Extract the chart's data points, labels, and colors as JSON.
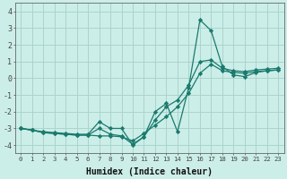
{
  "xlabel": "Humidex (Indice chaleur)",
  "x": [
    0,
    1,
    2,
    3,
    4,
    5,
    6,
    7,
    8,
    9,
    10,
    11,
    12,
    13,
    14,
    15,
    16,
    17,
    18,
    19,
    20,
    21,
    22,
    23
  ],
  "line1": [
    -3.0,
    -3.1,
    -3.25,
    -3.3,
    -3.35,
    -3.4,
    -3.4,
    -3.45,
    -3.45,
    -3.5,
    -3.75,
    -3.3,
    -2.8,
    -2.3,
    -1.7,
    -0.9,
    0.3,
    0.85,
    0.45,
    0.35,
    0.3,
    0.4,
    0.45,
    0.5
  ],
  "line2": [
    -3.0,
    -3.1,
    -3.25,
    -3.3,
    -3.35,
    -3.4,
    -3.4,
    -3.0,
    -3.35,
    -3.45,
    -3.95,
    -3.5,
    -2.5,
    -1.7,
    -1.3,
    -0.4,
    1.0,
    1.1,
    0.6,
    0.45,
    0.4,
    0.5,
    0.55,
    0.6
  ],
  "line3": [
    -3.0,
    -3.1,
    -3.2,
    -3.25,
    -3.3,
    -3.35,
    -3.35,
    -2.6,
    -3.0,
    -3.0,
    -4.0,
    -3.5,
    -2.0,
    -1.5,
    -3.2,
    -0.55,
    3.5,
    2.85,
    0.7,
    0.2,
    0.1,
    0.35,
    0.45,
    0.5
  ],
  "line_color": "#1a7a6e",
  "bg_color": "#cceee8",
  "grid_color": "#aad4cc",
  "ylim": [
    -4.5,
    4.5
  ],
  "xlim": [
    -0.5,
    23.5
  ],
  "yticks": [
    -4,
    -3,
    -2,
    -1,
    0,
    1,
    2,
    3,
    4
  ],
  "xticks": [
    0,
    1,
    2,
    3,
    4,
    5,
    6,
    7,
    8,
    9,
    10,
    11,
    12,
    13,
    14,
    15,
    16,
    17,
    18,
    19,
    20,
    21,
    22,
    23
  ]
}
